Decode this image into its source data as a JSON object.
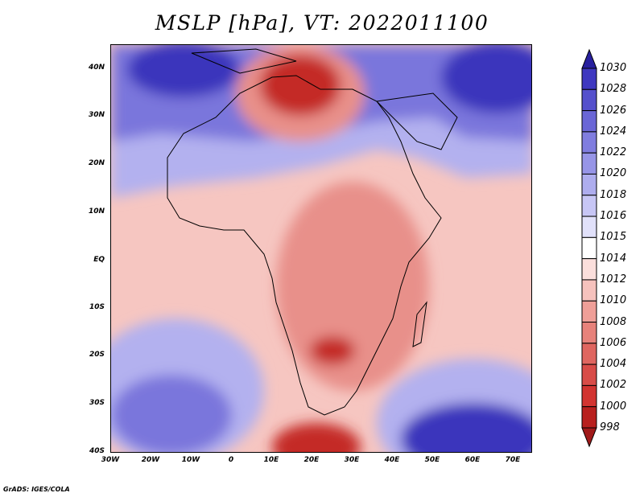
{
  "title": "MSLP [hPa], VT: 2022011100",
  "credit": "GrADS: IGES/COLA",
  "lat_labels": [
    "40N",
    "30N",
    "20N",
    "10N",
    "EQ",
    "10S",
    "20S",
    "30S",
    "40S"
  ],
  "lon_labels": [
    "30W",
    "20W",
    "10W",
    "0",
    "10E",
    "20E",
    "30E",
    "40E",
    "50E",
    "60E",
    "70E"
  ],
  "colorbar": {
    "labels": [
      "1030",
      "1028",
      "1026",
      "1024",
      "1022",
      "1020",
      "1018",
      "1016",
      "1015",
      "1014",
      "1012",
      "1010",
      "1008",
      "1006",
      "1004",
      "1002",
      "1000",
      "998"
    ],
    "colors": [
      "#28209e",
      "#3f38c0",
      "#5550cc",
      "#6a66d6",
      "#807ddf",
      "#9795e7",
      "#aeadee",
      "#c7c6f5",
      "#e1e1fa",
      "#ffffff",
      "#fbdfdc",
      "#f6c2bd",
      "#ef9f98",
      "#e7827b",
      "#df6660",
      "#d84c48",
      "#d23431",
      "#b8201e",
      "#a01a1a"
    ]
  },
  "map_colors": {
    "deep_high": "#3a34bc",
    "high": "#7a76dc",
    "mid_high": "#b3b1ef",
    "neutral": "#ffffff",
    "mid_low": "#f6c6c1",
    "low": "#e8908a",
    "deep_low": "#c42a27",
    "coast": "#000000"
  }
}
